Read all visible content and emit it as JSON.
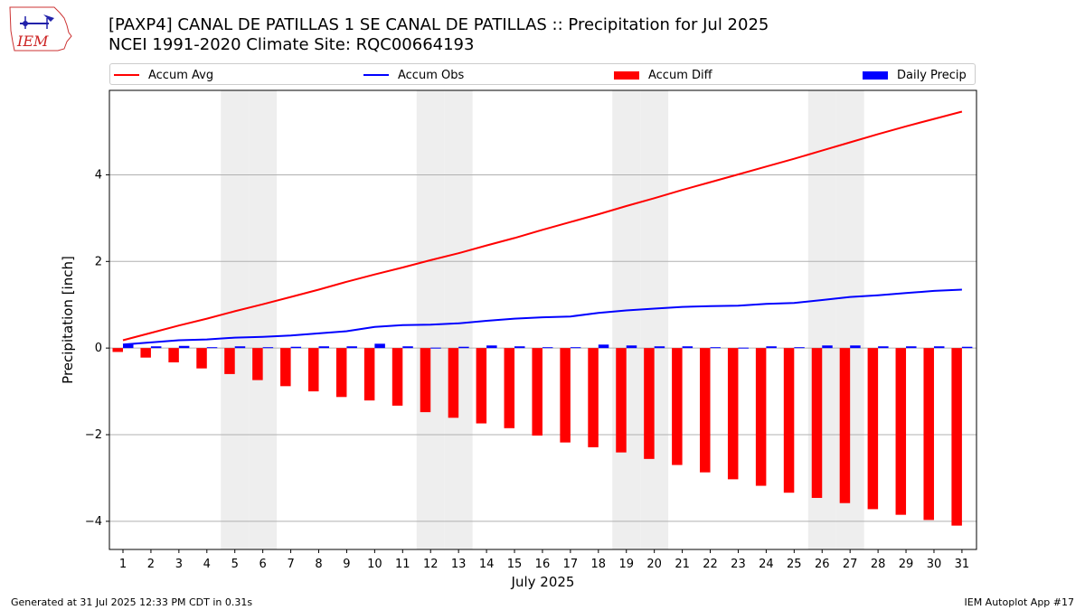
{
  "header": {
    "title_line1": "[PAXP4] CANAL DE PATILLAS 1 SE CANAL DE PATILLAS :: Precipitation for Jul 2025",
    "title_line2": "NCEI 1991-2020 Climate Site: RQC00664193"
  },
  "logo": {
    "text": "IEM"
  },
  "footer": {
    "left": "Generated at 31 Jul 2025 12:33 PM CDT in 0.31s",
    "right": "IEM Autoplot App #17"
  },
  "colors": {
    "avg": "#ff0000",
    "obs": "#0000ff",
    "diff": "#ff0000",
    "daily": "#0000ff",
    "weekend": "#eeeeee",
    "grid": "#b0b0b0"
  },
  "chart_data": {
    "type": "bar",
    "xlabel": "July 2025",
    "ylabel": "Precipitation [inch]",
    "ylim": [
      -4.65,
      5.95
    ],
    "yticks": [
      -4,
      -2,
      0,
      2,
      4
    ],
    "grid": true,
    "legend_position": "top",
    "categories": [
      "1",
      "2",
      "3",
      "4",
      "5",
      "6",
      "7",
      "8",
      "9",
      "10",
      "11",
      "12",
      "13",
      "14",
      "15",
      "16",
      "17",
      "18",
      "19",
      "20",
      "21",
      "22",
      "23",
      "24",
      "25",
      "26",
      "27",
      "28",
      "29",
      "30",
      "31"
    ],
    "weekend_days": [
      5,
      6,
      12,
      13,
      19,
      20,
      26,
      27
    ],
    "series": [
      {
        "name": "Accum Avg",
        "kind": "line",
        "values": [
          0.18,
          0.35,
          0.52,
          0.68,
          0.85,
          1.01,
          1.18,
          1.35,
          1.53,
          1.7,
          1.86,
          2.03,
          2.19,
          2.37,
          2.54,
          2.73,
          2.91,
          3.09,
          3.28,
          3.46,
          3.65,
          3.83,
          4.01,
          4.19,
          4.37,
          4.56,
          4.75,
          4.94,
          5.12,
          5.29,
          5.46
        ]
      },
      {
        "name": "Accum Obs",
        "kind": "line",
        "values": [
          0.08,
          0.13,
          0.18,
          0.2,
          0.24,
          0.26,
          0.29,
          0.34,
          0.39,
          0.49,
          0.53,
          0.54,
          0.57,
          0.63,
          0.68,
          0.71,
          0.73,
          0.81,
          0.87,
          0.91,
          0.95,
          0.97,
          0.98,
          1.02,
          1.04,
          1.11,
          1.18,
          1.22,
          1.27,
          1.32,
          1.35
        ]
      },
      {
        "name": "Accum Diff",
        "kind": "bar",
        "values": [
          -0.09,
          -0.22,
          -0.33,
          -0.47,
          -0.6,
          -0.74,
          -0.88,
          -1.0,
          -1.13,
          -1.21,
          -1.33,
          -1.48,
          -1.61,
          -1.74,
          -1.85,
          -2.02,
          -2.18,
          -2.29,
          -2.41,
          -2.56,
          -2.7,
          -2.87,
          -3.03,
          -3.18,
          -3.34,
          -3.46,
          -3.58,
          -3.72,
          -3.85,
          -3.97,
          -4.1
        ]
      },
      {
        "name": "Daily Precip",
        "kind": "bar",
        "values": [
          0.08,
          0.04,
          0.05,
          0.02,
          0.04,
          0.02,
          0.03,
          0.04,
          0.04,
          0.1,
          0.04,
          0.01,
          0.03,
          0.06,
          0.04,
          0.02,
          0.02,
          0.08,
          0.06,
          0.04,
          0.04,
          0.02,
          0.01,
          0.04,
          0.02,
          0.06,
          0.06,
          0.04,
          0.04,
          0.04,
          0.03
        ]
      }
    ]
  }
}
